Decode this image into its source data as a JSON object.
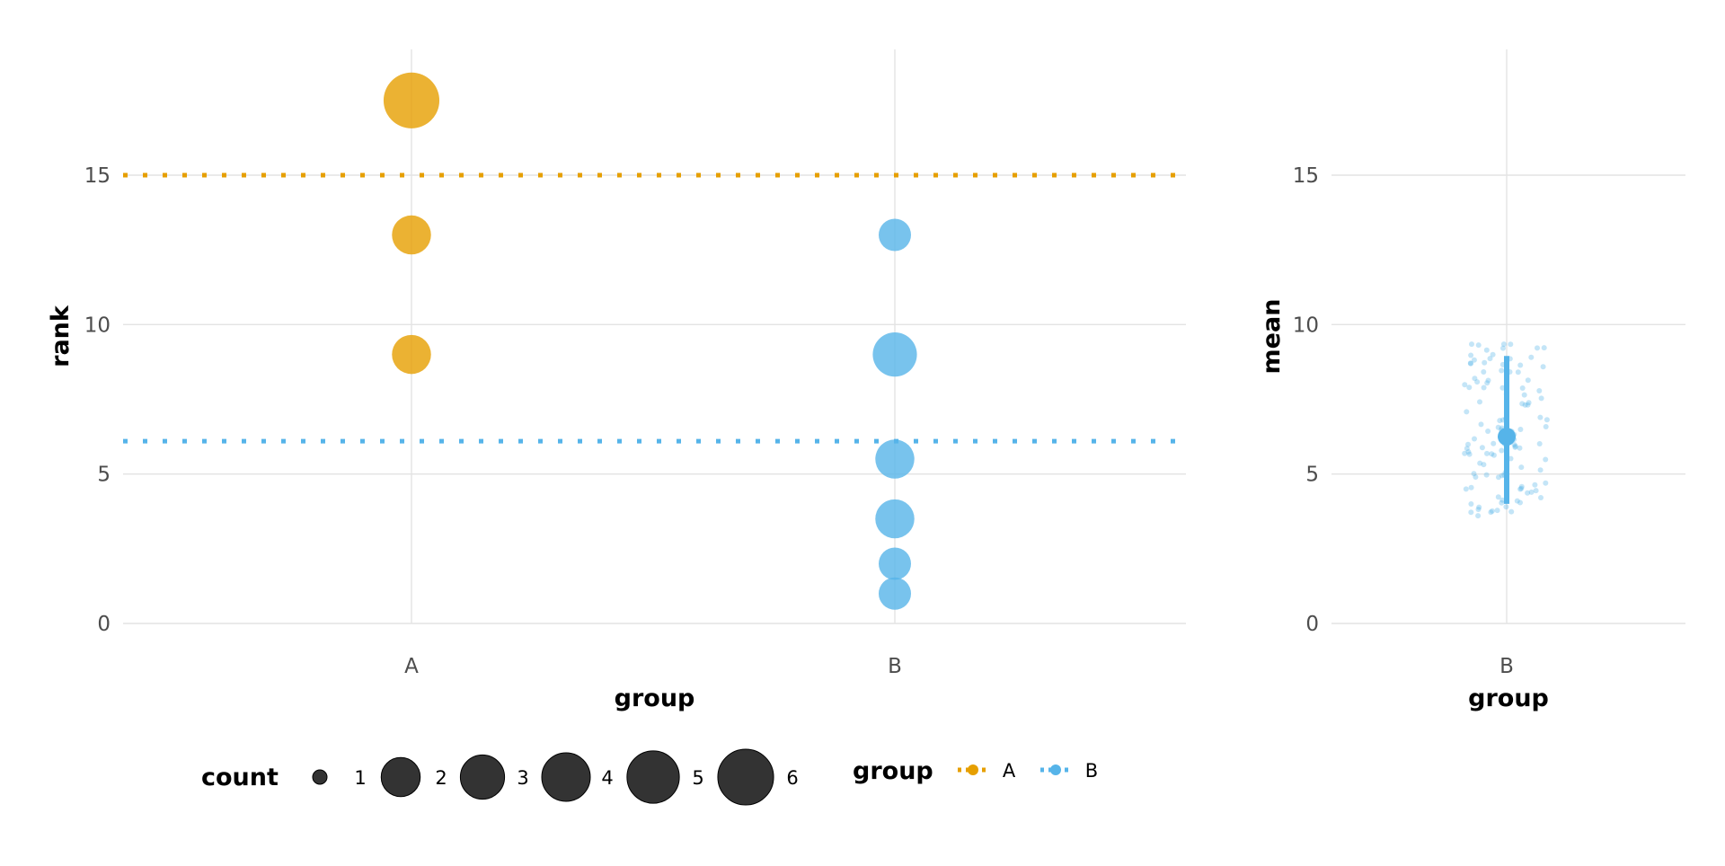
{
  "chart_data": [
    {
      "type": "scatter",
      "subtype": "bubble",
      "xlabel": "group",
      "ylabel": "rank",
      "categories": [
        "A",
        "B"
      ],
      "ylim": [
        -0.8,
        19.2
      ],
      "yticks": [
        0,
        5,
        10,
        15
      ],
      "grid": true,
      "series": [
        {
          "name": "A",
          "color": "#E69F00",
          "points": [
            {
              "x": "A",
              "y": 17.5,
              "count": 6
            },
            {
              "x": "A",
              "y": 13,
              "count": 2
            },
            {
              "x": "A",
              "y": 9,
              "count": 2
            }
          ],
          "mean_line": 15,
          "line_style": "dotted"
        },
        {
          "name": "B",
          "color": "#56B4E9",
          "points": [
            {
              "x": "B",
              "y": 13,
              "count": 1
            },
            {
              "x": "B",
              "y": 9,
              "count": 3
            },
            {
              "x": "B",
              "y": 5.5,
              "count": 2
            },
            {
              "x": "B",
              "y": 3.5,
              "count": 2
            },
            {
              "x": "B",
              "y": 2,
              "count": 1
            },
            {
              "x": "B",
              "y": 1,
              "count": 1
            }
          ],
          "mean_line": 6.1,
          "line_style": "dotted"
        }
      ]
    },
    {
      "type": "scatter",
      "subtype": "pointrange",
      "xlabel": "group",
      "ylabel": "mean",
      "categories": [
        "B"
      ],
      "ylim": [
        -0.8,
        19.2
      ],
      "yticks": [
        0,
        5,
        10,
        15
      ],
      "grid": true,
      "series": [
        {
          "name": "B",
          "color": "#56B4E9",
          "mean": 6.25,
          "lower": 4.0,
          "upper": 8.95,
          "jitter_range": [
            3.6,
            9.4
          ]
        }
      ]
    }
  ],
  "legend": {
    "placement": "bottom",
    "count": {
      "title": "count",
      "labels": [
        "1",
        "2",
        "3",
        "4",
        "5",
        "6"
      ]
    },
    "group": {
      "title": "group",
      "labels": [
        "A",
        "B"
      ],
      "colors": [
        "#E69F00",
        "#56B4E9"
      ]
    }
  }
}
